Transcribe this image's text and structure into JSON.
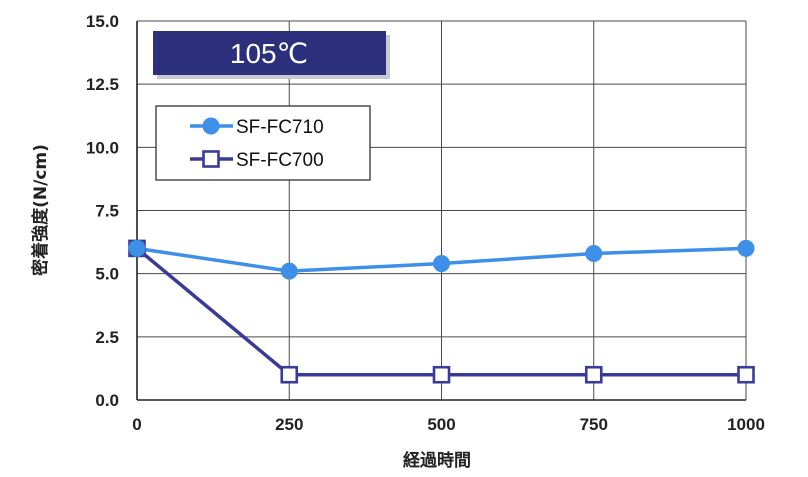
{
  "chart_data": {
    "type": "line",
    "title": "105℃",
    "xlabel": "経過時間",
    "ylabel": "密着強度(N/cm)",
    "x": [
      0,
      250,
      500,
      750,
      1000
    ],
    "xlim": [
      0,
      1000
    ],
    "ylim": [
      0,
      15
    ],
    "xticks": [
      "0",
      "250",
      "500",
      "750",
      "1000"
    ],
    "yticks": [
      "0.0",
      "2.5",
      "5.0",
      "7.5",
      "10.0",
      "12.5",
      "15.0"
    ],
    "grid": true,
    "legend": "top-left",
    "series": [
      {
        "name": "SF-FC710",
        "values": [
          6.0,
          5.1,
          5.4,
          5.8,
          6.0
        ],
        "color": "#3d8fe8",
        "marker": "filled-circle"
      },
      {
        "name": "SF-FC700",
        "values": [
          6.0,
          1.0,
          1.0,
          1.0,
          1.0
        ],
        "color": "#3a3b98",
        "marker": "open-square"
      }
    ],
    "badge_color": "#2b2f7c"
  }
}
